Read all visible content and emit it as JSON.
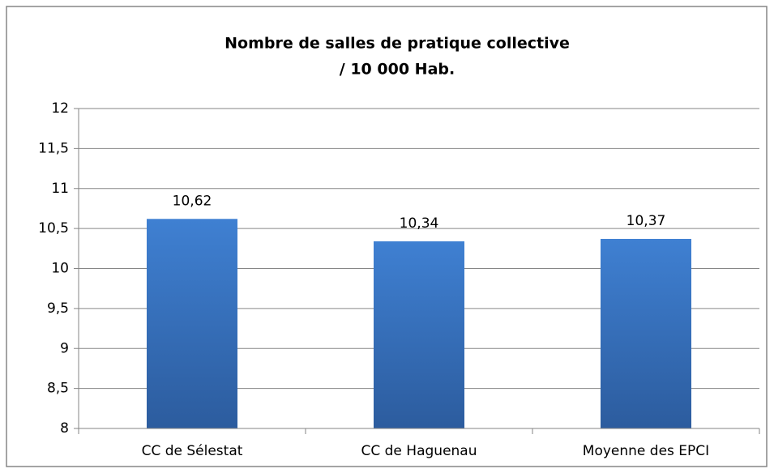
{
  "chart_data": {
    "type": "bar",
    "title": [
      "Nombre de salles de pratique collective",
      "/ 10 000 Hab."
    ],
    "categories": [
      "CC de Sélestat",
      "CC de Haguenau",
      "Moyenne des EPCI"
    ],
    "values": [
      10.62,
      10.34,
      10.37
    ],
    "value_labels": [
      "10,62",
      "10,34",
      "10,37"
    ],
    "color": "#3a74c0",
    "ylim": [
      8,
      12
    ],
    "yticks": [
      8,
      {
        "value": 8.5,
        "label": "8,5"
      },
      9,
      {
        "value": 9.5,
        "label": "9,5"
      },
      10,
      {
        "value": 10.5,
        "label": "10,5"
      },
      11,
      {
        "value": 11.5,
        "label": "11,5"
      },
      12
    ],
    "grid": true
  }
}
